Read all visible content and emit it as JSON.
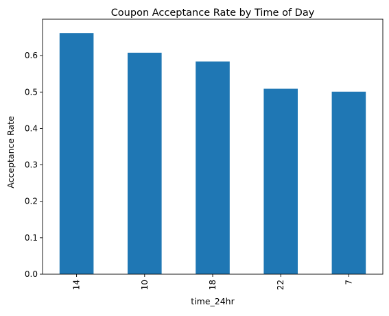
{
  "chart_data": {
    "type": "bar",
    "title": "Coupon Acceptance Rate by Time of Day",
    "xlabel": "time_24hr",
    "ylabel": "Acceptance Rate",
    "categories": [
      "14",
      "10",
      "18",
      "22",
      "7"
    ],
    "values": [
      0.662,
      0.608,
      0.584,
      0.509,
      0.501
    ],
    "ylim": [
      0,
      0.7
    ],
    "yticks": [
      0.0,
      0.1,
      0.2,
      0.3,
      0.4,
      0.5,
      0.6
    ],
    "ytick_labels": [
      "0.0",
      "0.1",
      "0.2",
      "0.3",
      "0.4",
      "0.5",
      "0.6"
    ],
    "bar_color": "#1f77b4",
    "grid": false,
    "legend": "none"
  }
}
